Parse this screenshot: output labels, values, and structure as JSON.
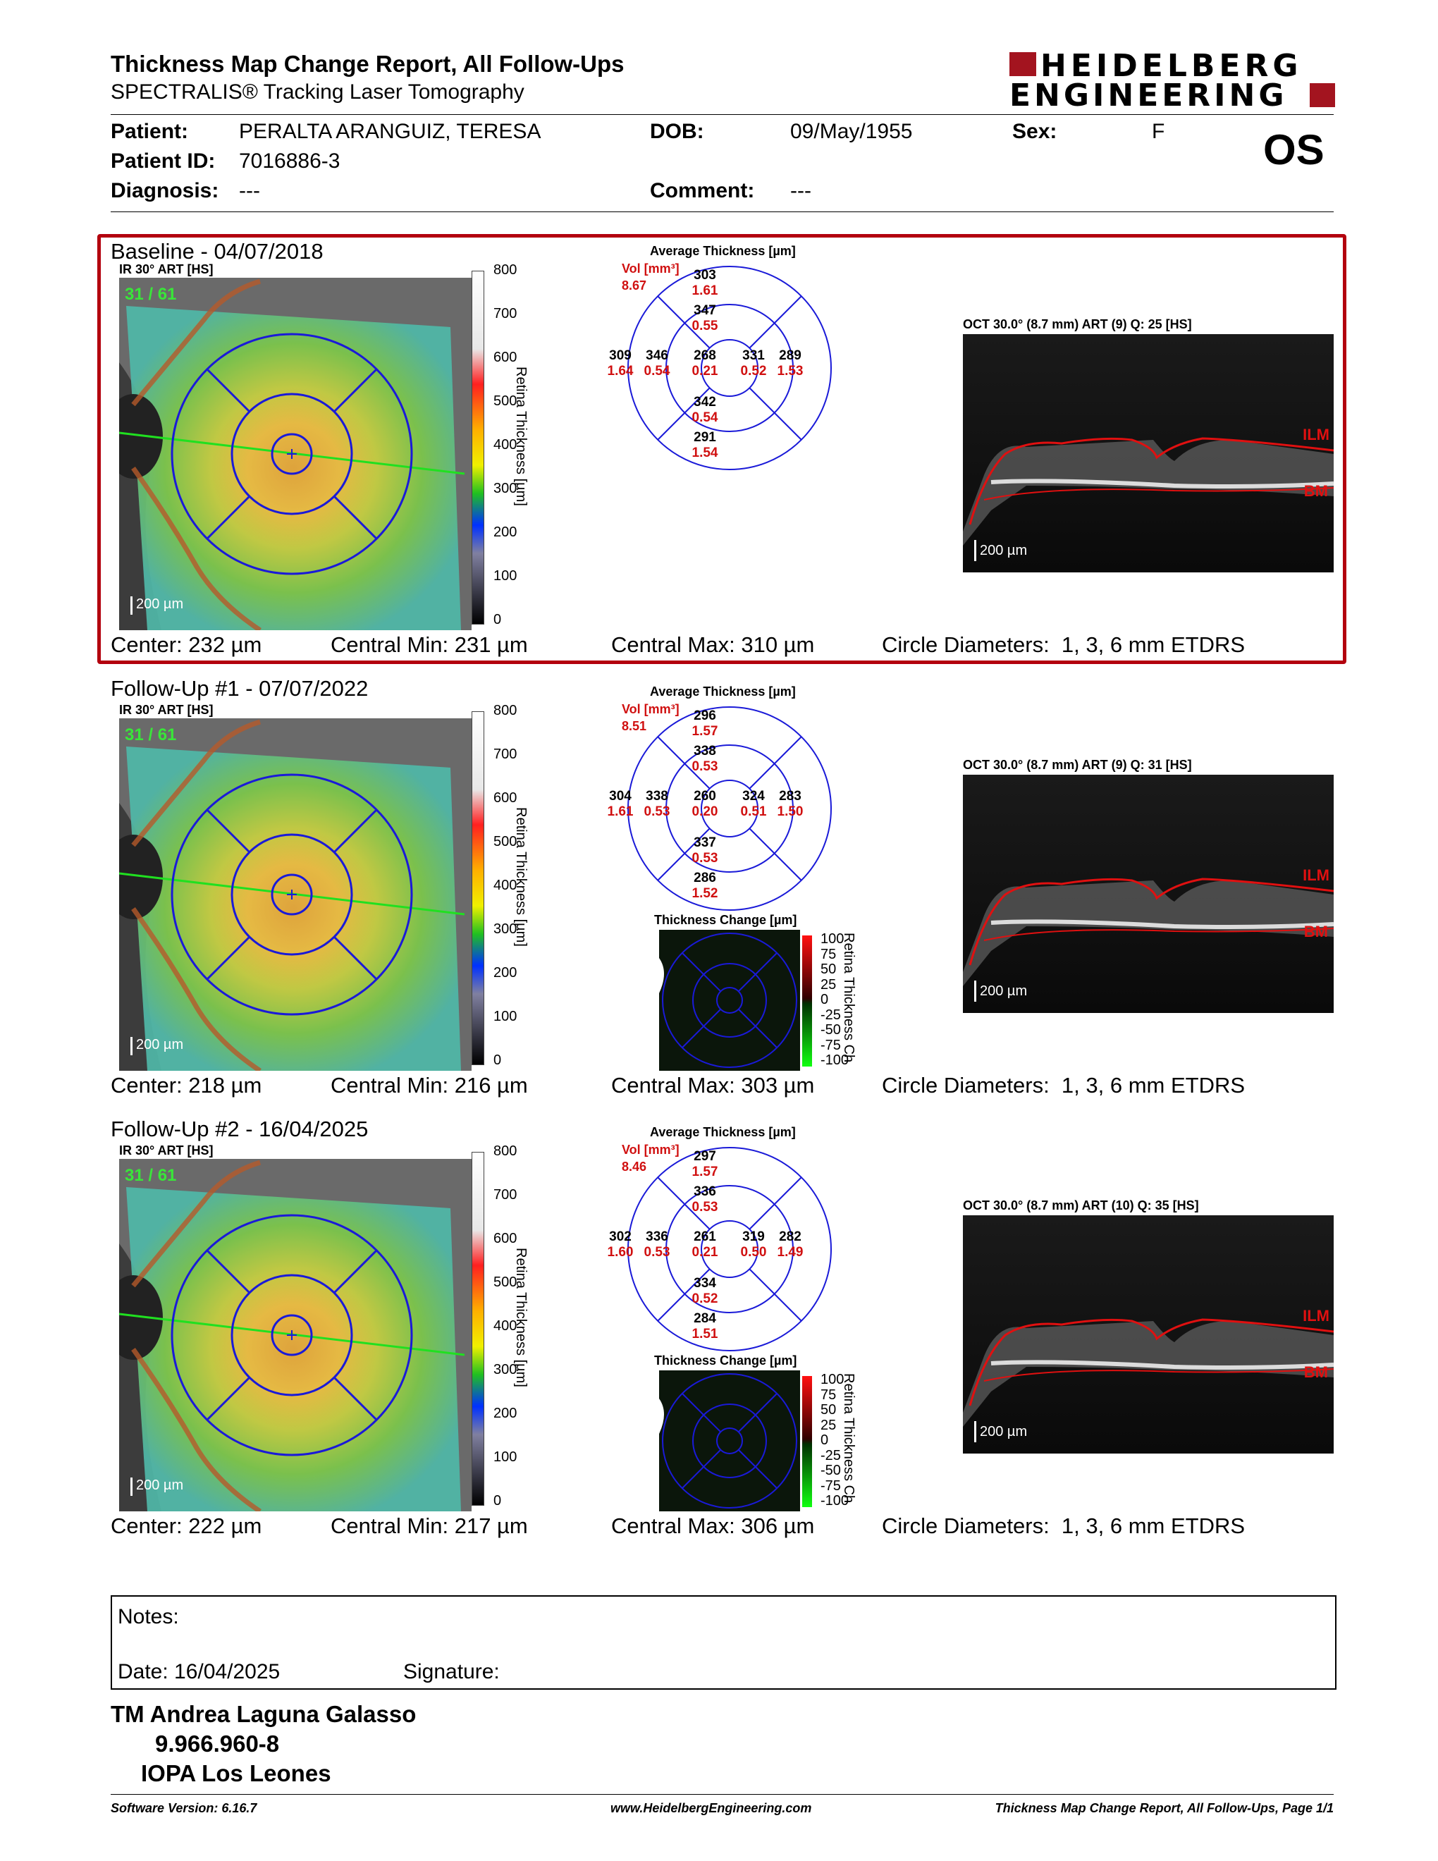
{
  "header": {
    "title": "Thickness Map Change Report, All Follow-Ups",
    "subtitle": "SPECTRALIS® Tracking Laser Tomography",
    "logo_line1": "HEIDELBERG",
    "logo_line2": "ENGINEERING",
    "eye": "OS"
  },
  "patient": {
    "name_label": "Patient:",
    "name": "PERALTA ARANGUIZ, TERESA",
    "dob_label": "DOB:",
    "dob": "09/May/1955",
    "sex_label": "Sex:",
    "sex": "F",
    "id_label": "Patient ID:",
    "id": "7016886-3",
    "diagnosis_label": "Diagnosis:",
    "diagnosis": "---",
    "comment_label": "Comment:",
    "comment": "---"
  },
  "colors": {
    "frame": "#b3000e",
    "grid_blue": "#1a1ad8",
    "value_red": "#d01010"
  },
  "visits": [
    {
      "title": "Baseline - 04/07/2018",
      "ir_label": "IR 30° ART [HS]",
      "ir_overlay": "31 / 61",
      "scale_text": "200 µm",
      "colorbar_ticks": [
        "800",
        "700",
        "600",
        "500",
        "400",
        "300",
        "200",
        "100",
        "0"
      ],
      "colorbar_title": "Retina Thickness [µm]",
      "avg_title": "Average Thickness [µm]",
      "vol_label": "Vol [mm³]",
      "vol_total": "8.67",
      "sectors": {
        "center": [
          "268",
          "0.21"
        ],
        "inner_sup": [
          "347",
          "0.55"
        ],
        "inner_temp": [
          "346",
          "0.54"
        ],
        "inner_nas": [
          "331",
          "0.52"
        ],
        "inner_inf": [
          "342",
          "0.54"
        ],
        "outer_sup": [
          "303",
          "1.61"
        ],
        "outer_temp": [
          "309",
          "1.64"
        ],
        "outer_nas": [
          "289",
          "1.53"
        ],
        "outer_inf": [
          "291",
          "1.54"
        ]
      },
      "oct_label": "OCT 30.0° (8.7 mm) ART (9) Q: 25 [HS]",
      "oct_ilm": "ILM",
      "oct_bm": "BM",
      "oct_scale": "200 µm",
      "center_label": "Center: 232 µm",
      "min_label": "Central Min: 231 µm",
      "max_label": "Central Max: 310 µm",
      "circles_label": "Circle Diameters:  1, 3, 6 mm ETDRS"
    },
    {
      "title": "Follow-Up #1 - 07/07/2022",
      "ir_label": "IR 30° ART [HS]",
      "ir_overlay": "31 / 61",
      "scale_text": "200 µm",
      "colorbar_ticks": [
        "800",
        "700",
        "600",
        "500",
        "400",
        "300",
        "200",
        "100",
        "0"
      ],
      "colorbar_title": "Retina Thickness [µm]",
      "avg_title": "Average Thickness [µm]",
      "vol_label": "Vol [mm³]",
      "vol_total": "8.51",
      "sectors": {
        "center": [
          "260",
          "0.20"
        ],
        "inner_sup": [
          "338",
          "0.53"
        ],
        "inner_temp": [
          "338",
          "0.53"
        ],
        "inner_nas": [
          "324",
          "0.51"
        ],
        "inner_inf": [
          "337",
          "0.53"
        ],
        "outer_sup": [
          "296",
          "1.57"
        ],
        "outer_temp": [
          "304",
          "1.61"
        ],
        "outer_nas": [
          "283",
          "1.50"
        ],
        "outer_inf": [
          "286",
          "1.52"
        ]
      },
      "change_title": "Thickness Change [µm]",
      "change_ticks": [
        "100",
        "75",
        "50",
        "25",
        "0",
        "-25",
        "-50",
        "-75",
        "-100"
      ],
      "change_bar_title": "Retina Thickness Ch",
      "oct_label": "OCT 30.0° (8.7 mm) ART (9) Q: 31 [HS]",
      "oct_ilm": "ILM",
      "oct_bm": "BM",
      "oct_scale": "200 µm",
      "center_label": "Center: 218 µm",
      "min_label": "Central Min: 216 µm",
      "max_label": "Central Max: 303 µm",
      "circles_label": "Circle Diameters:  1, 3, 6 mm ETDRS"
    },
    {
      "title": "Follow-Up #2 - 16/04/2025",
      "ir_label": "IR 30° ART [HS]",
      "ir_overlay": "31 / 61",
      "scale_text": "200 µm",
      "colorbar_ticks": [
        "800",
        "700",
        "600",
        "500",
        "400",
        "300",
        "200",
        "100",
        "0"
      ],
      "colorbar_title": "Retina Thickness [µm]",
      "avg_title": "Average Thickness [µm]",
      "vol_label": "Vol [mm³]",
      "vol_total": "8.46",
      "sectors": {
        "center": [
          "261",
          "0.21"
        ],
        "inner_sup": [
          "336",
          "0.53"
        ],
        "inner_temp": [
          "336",
          "0.53"
        ],
        "inner_nas": [
          "319",
          "0.50"
        ],
        "inner_inf": [
          "334",
          "0.52"
        ],
        "outer_sup": [
          "297",
          "1.57"
        ],
        "outer_temp": [
          "302",
          "1.60"
        ],
        "outer_nas": [
          "282",
          "1.49"
        ],
        "outer_inf": [
          "284",
          "1.51"
        ]
      },
      "change_title": "Thickness Change [µm]",
      "change_ticks": [
        "100",
        "75",
        "50",
        "25",
        "0",
        "-25",
        "-50",
        "-75",
        "-100"
      ],
      "change_bar_title": "Retina Thickness Ch",
      "oct_label": "OCT 30.0° (8.7 mm) ART (10) Q: 35 [HS]",
      "oct_ilm": "ILM",
      "oct_bm": "BM",
      "oct_scale": "200 µm",
      "center_label": "Center: 222 µm",
      "min_label": "Central Min: 217 µm",
      "max_label": "Central Max: 306 µm",
      "circles_label": "Circle Diameters:  1, 3, 6 mm ETDRS"
    }
  ],
  "notes": {
    "notes_label": "Notes:",
    "date_label": "Date: 16/04/2025",
    "signature_label": "Signature:"
  },
  "signatory": {
    "name": "TM Andrea Laguna Galasso",
    "rut": "9.966.960-8",
    "institution": "IOPA Los Leones"
  },
  "footer": {
    "software": "Software Version: 6.16.7",
    "website": "www.HeidelbergEngineering.com",
    "page": "Thickness Map Change Report, All Follow-Ups, Page 1/1"
  }
}
